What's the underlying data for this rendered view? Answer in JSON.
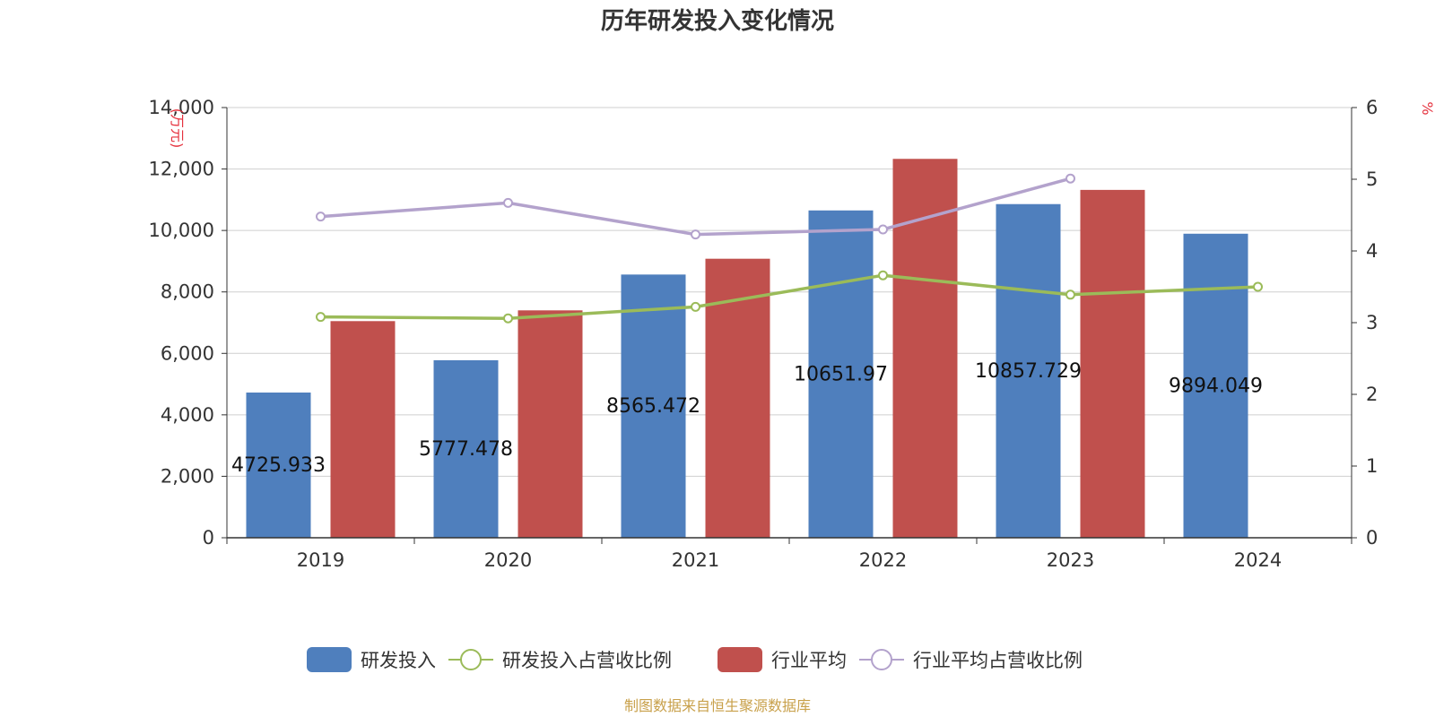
{
  "chart_data": {
    "type": "bar",
    "title": "历年研发投入变化情况",
    "categories": [
      "2019",
      "2020",
      "2021",
      "2022",
      "2023",
      "2024"
    ],
    "left_axis": {
      "unit": "(万元)",
      "ylim": [
        0,
        14000
      ],
      "ticks": [
        0,
        2000,
        4000,
        6000,
        8000,
        10000,
        12000,
        14000
      ],
      "tick_labels": [
        "0",
        "2,000",
        "4,000",
        "6,000",
        "8,000",
        "10,000",
        "12,000",
        "14,000"
      ]
    },
    "right_axis": {
      "unit": "%",
      "ylim": [
        0,
        6
      ],
      "ticks": [
        0,
        1,
        2,
        3,
        4,
        5,
        6
      ],
      "tick_labels": [
        "0",
        "1",
        "2",
        "3",
        "4",
        "5",
        "6"
      ]
    },
    "grid": true,
    "legend_position": "bottom-center",
    "series": [
      {
        "name": "研发投入",
        "type": "bar",
        "axis": "left",
        "color": "#4f7fbd",
        "values": [
          4725.933,
          5777.478,
          8565.472,
          10651.97,
          10857.729,
          9894.049
        ],
        "data_labels": [
          "4725.933",
          "5777.478",
          "8565.472",
          "10651.97",
          "10857.729",
          "9894.049"
        ]
      },
      {
        "name": "研发投入占营收比例",
        "type": "line",
        "axis": "right",
        "color": "#9bbb59",
        "values": [
          3.08,
          3.06,
          3.22,
          3.66,
          3.39,
          3.5
        ]
      },
      {
        "name": "行业平均",
        "type": "bar",
        "axis": "left",
        "color": "#c0504d",
        "values": [
          7050,
          7400,
          9080,
          12330,
          11320,
          null
        ]
      },
      {
        "name": "行业平均占营收比例",
        "type": "line",
        "axis": "right",
        "color": "#b3a2cc",
        "values": [
          4.48,
          4.67,
          4.23,
          4.3,
          5.01,
          null
        ]
      }
    ]
  },
  "source": "制图数据来自恒生聚源数据库"
}
